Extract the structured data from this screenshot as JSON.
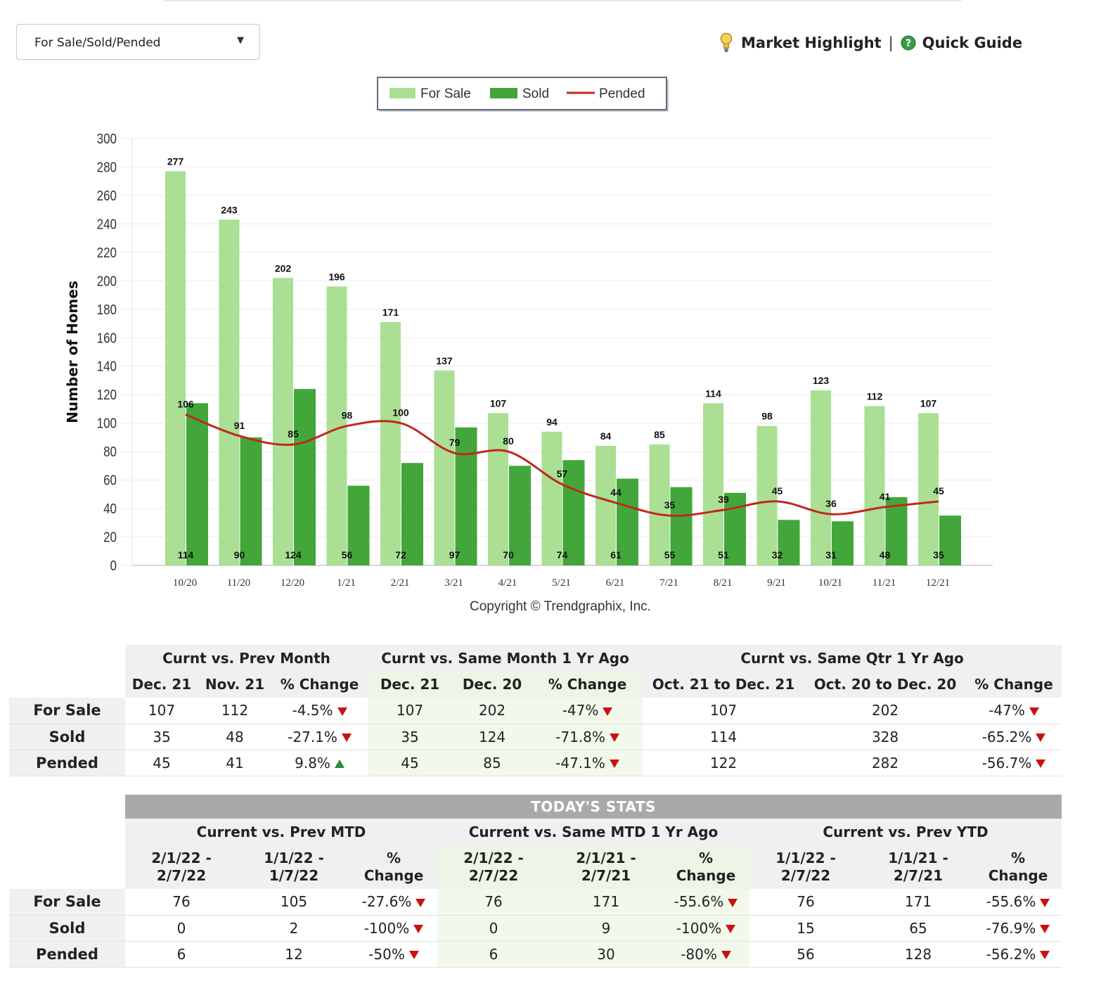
{
  "toolbar": {
    "dropdown_value": "For Sale/Sold/Pended",
    "market_highlight": "Market Highlight",
    "separator": "|",
    "quick_guide": "Quick Guide"
  },
  "colors": {
    "for_sale": "#aadf94",
    "sold": "#42a63a",
    "pended": "#c0281e",
    "increase": "#2e8b3a",
    "decrease": "#cc1010"
  },
  "chart_data": {
    "type": "bar",
    "ylabel": "Number of Homes",
    "ylim": [
      0,
      300
    ],
    "yticks": [
      0,
      20,
      40,
      60,
      80,
      100,
      120,
      140,
      160,
      180,
      200,
      220,
      240,
      260,
      280,
      300
    ],
    "grid": true,
    "legend_position": "top-center",
    "categories": [
      "10/20",
      "11/20",
      "12/20",
      "1/21",
      "2/21",
      "3/21",
      "4/21",
      "5/21",
      "6/21",
      "7/21",
      "8/21",
      "9/21",
      "10/21",
      "11/21",
      "12/21"
    ],
    "series": [
      {
        "name": "For Sale",
        "type": "bar",
        "values": [
          277,
          243,
          202,
          196,
          171,
          137,
          107,
          94,
          84,
          85,
          114,
          98,
          123,
          112,
          107
        ]
      },
      {
        "name": "Sold",
        "type": "bar",
        "values": [
          114,
          90,
          124,
          56,
          72,
          97,
          70,
          74,
          61,
          55,
          51,
          32,
          31,
          48,
          35
        ]
      },
      {
        "name": "Pended",
        "type": "line",
        "values": [
          106,
          91,
          85,
          98,
          100,
          79,
          80,
          57,
          44,
          35,
          39,
          45,
          36,
          41,
          45
        ]
      }
    ],
    "copyright": "Copyright © Trendgraphix, Inc."
  },
  "monthly_table": {
    "groups": [
      "Curnt vs. Prev Month",
      "Curnt vs. Same Month 1 Yr Ago",
      "Curnt vs. Same Qtr 1 Yr Ago"
    ],
    "subheaders": [
      "Dec. 21",
      "Nov. 21",
      "% Change",
      "Dec. 21",
      "Dec. 20",
      "% Change",
      "Oct. 21 to Dec. 21",
      "Oct. 20 to Dec. 20",
      "% Change"
    ],
    "rows": [
      {
        "label": "For Sale",
        "cells": [
          "107",
          "112",
          "-4.5%",
          "107",
          "202",
          "-47%",
          "107",
          "202",
          "-47%"
        ],
        "dirs": [
          "down",
          "down",
          "down"
        ]
      },
      {
        "label": "Sold",
        "cells": [
          "35",
          "48",
          "-27.1%",
          "35",
          "124",
          "-71.8%",
          "114",
          "328",
          "-65.2%"
        ],
        "dirs": [
          "down",
          "down",
          "down"
        ]
      },
      {
        "label": "Pended",
        "cells": [
          "45",
          "41",
          "9.8%",
          "45",
          "85",
          "-47.1%",
          "122",
          "282",
          "-56.7%"
        ],
        "dirs": [
          "up",
          "down",
          "down"
        ]
      }
    ]
  },
  "today_table": {
    "banner": "TODAY'S STATS",
    "groups": [
      "Current vs. Prev MTD",
      "Current vs. Same MTD 1 Yr Ago",
      "Current vs. Prev YTD"
    ],
    "subheaders": [
      [
        "2/1/22 -",
        "2/7/22"
      ],
      [
        "1/1/22 -",
        "1/7/22"
      ],
      [
        "%",
        "Change"
      ],
      [
        "2/1/22 -",
        "2/7/22"
      ],
      [
        "2/1/21 -",
        "2/7/21"
      ],
      [
        "%",
        "Change"
      ],
      [
        "1/1/22 -",
        "2/7/22"
      ],
      [
        "1/1/21 -",
        "2/7/21"
      ],
      [
        "%",
        "Change"
      ]
    ],
    "rows": [
      {
        "label": "For Sale",
        "cells": [
          "76",
          "105",
          "-27.6%",
          "76",
          "171",
          "-55.6%",
          "76",
          "171",
          "-55.6%"
        ],
        "dirs": [
          "down",
          "down",
          "down"
        ]
      },
      {
        "label": "Sold",
        "cells": [
          "0",
          "2",
          "-100%",
          "0",
          "9",
          "-100%",
          "15",
          "65",
          "-76.9%"
        ],
        "dirs": [
          "down",
          "down",
          "down"
        ]
      },
      {
        "label": "Pended",
        "cells": [
          "6",
          "12",
          "-50%",
          "6",
          "30",
          "-80%",
          "56",
          "128",
          "-56.2%"
        ],
        "dirs": [
          "down",
          "down",
          "down"
        ]
      }
    ]
  }
}
